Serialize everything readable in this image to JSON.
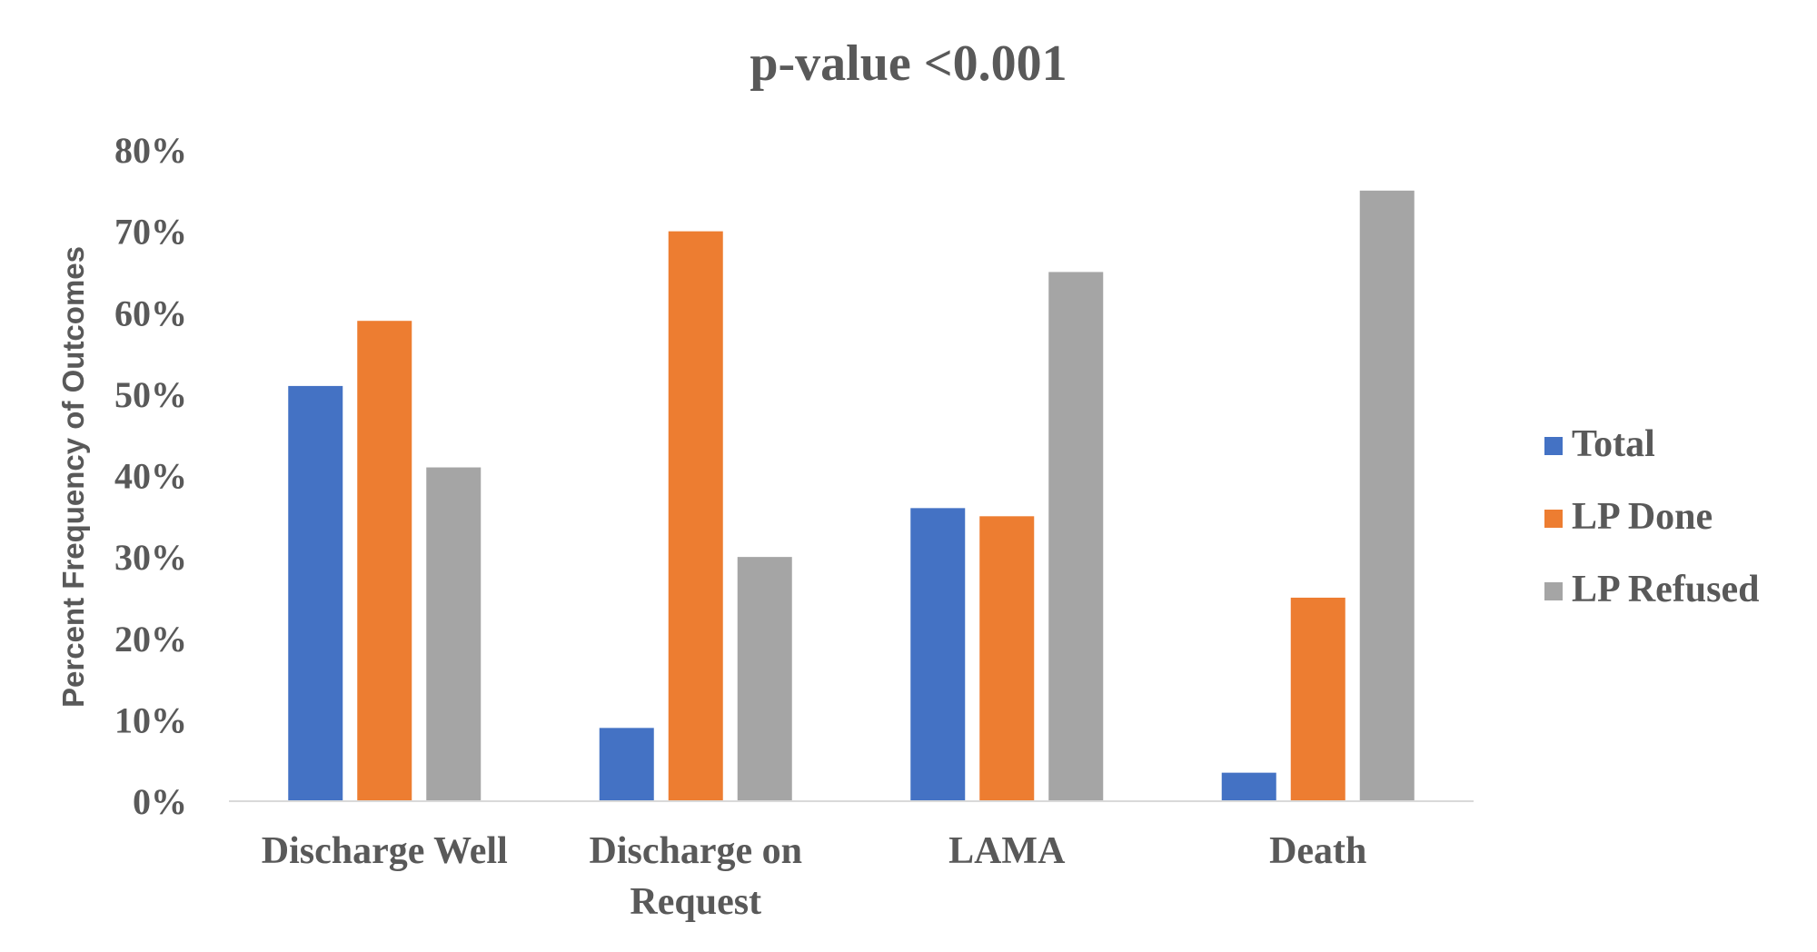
{
  "chart_data": {
    "type": "bar",
    "title": "p-value <0.001",
    "xlabel": "",
    "ylabel": "Percent Frequency of Outcomes",
    "categories": [
      [
        "Discharge Well"
      ],
      [
        "Discharge on",
        "Request"
      ],
      [
        "LAMA"
      ],
      [
        "Death"
      ]
    ],
    "series": [
      {
        "name": "Total",
        "values": [
          51,
          9,
          36,
          3.5
        ]
      },
      {
        "name": "LP Done",
        "values": [
          59,
          70,
          35,
          25
        ]
      },
      {
        "name": "LP Refused",
        "values": [
          41,
          30,
          65,
          75
        ]
      }
    ],
    "ylim": [
      0,
      80
    ],
    "yticks": [
      0,
      10,
      20,
      30,
      40,
      50,
      60,
      70,
      80
    ],
    "ytick_labels": [
      "0%",
      "10%",
      "20%",
      "30%",
      "40%",
      "50%",
      "60%",
      "70%",
      "80%"
    ],
    "grid": false,
    "legend_position": "right",
    "colors": [
      "#4472c4",
      "#ed7d31",
      "#a5a5a5"
    ],
    "axis_color": "#d9d9d9"
  }
}
